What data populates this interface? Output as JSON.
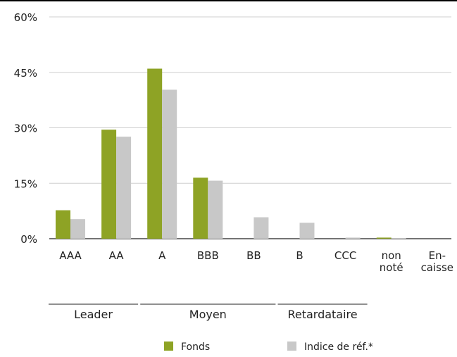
{
  "chart_data": {
    "type": "bar",
    "categories": [
      "AAA",
      "AA",
      "A",
      "BBB",
      "BB",
      "B",
      "CCC",
      "non noté",
      "En- caisse"
    ],
    "category_label_lines": [
      [
        "AAA"
      ],
      [
        "AA"
      ],
      [
        "A"
      ],
      [
        "BBB"
      ],
      [
        "BB"
      ],
      [
        "B"
      ],
      [
        "CCC"
      ],
      [
        "non",
        "noté"
      ],
      [
        "En-",
        "caisse"
      ]
    ],
    "series": [
      {
        "name": "Fonds",
        "color": "#8ea325",
        "values": [
          7.7,
          29.5,
          46.0,
          16.5,
          0,
          0,
          0,
          0.3,
          0
        ]
      },
      {
        "name": "Indice de réf.*",
        "color": "#c8c8c8",
        "values": [
          5.3,
          27.6,
          40.3,
          15.7,
          5.8,
          4.3,
          0.3,
          0.2,
          0
        ]
      }
    ],
    "yticks": [
      "0%",
      "15%",
      "30%",
      "45%",
      "60%"
    ],
    "ylim": [
      0,
      60
    ],
    "grid": true,
    "groups": [
      {
        "label": "Leader",
        "categories": [
          "AAA",
          "AA"
        ]
      },
      {
        "label": "Moyen",
        "categories": [
          "A",
          "BBB",
          "BB"
        ]
      },
      {
        "label": "Retardataire",
        "categories": [
          "B",
          "CCC"
        ]
      }
    ],
    "legend_position": "bottom"
  }
}
